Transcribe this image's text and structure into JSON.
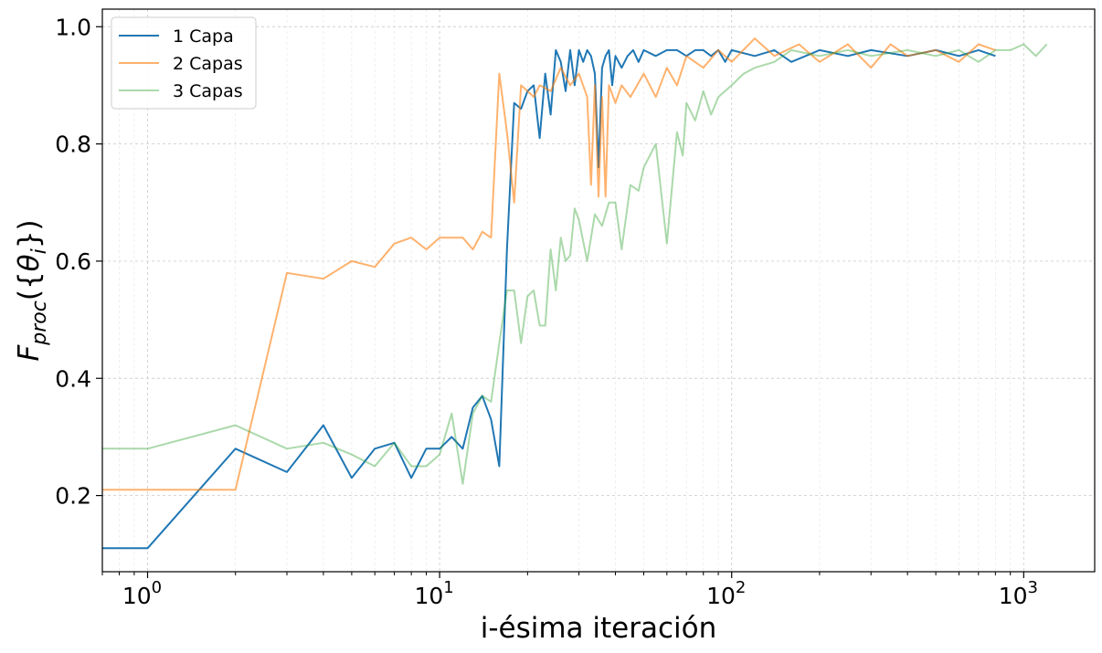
{
  "chart_data": {
    "type": "line",
    "xscale": "log",
    "xlabel": "i-ésima iteración",
    "ylabel": "F_proc({θ_i})",
    "xlim": [
      0.7,
      1750
    ],
    "ylim": [
      0.07,
      1.03
    ],
    "xticks": [
      {
        "value": 1,
        "base": "10",
        "exp": "0"
      },
      {
        "value": 10,
        "base": "10",
        "exp": "1"
      },
      {
        "value": 100,
        "base": "10",
        "exp": "2"
      },
      {
        "value": 1000,
        "base": "10",
        "exp": "3"
      }
    ],
    "yticks": [
      {
        "value": 0.2,
        "label": "0.2"
      },
      {
        "value": 0.4,
        "label": "0.4"
      },
      {
        "value": 0.6,
        "label": "0.6"
      },
      {
        "value": 0.8,
        "label": "0.8"
      },
      {
        "value": 1.0,
        "label": "1.0"
      }
    ],
    "grid": true,
    "legend_position": "top-left",
    "series": [
      {
        "name": "1 Capa",
        "color": "#1f77b4",
        "opacity": 1.0,
        "x": [
          0,
          1,
          2,
          3,
          4,
          5,
          6,
          7,
          8,
          9,
          10,
          11,
          12,
          13,
          14,
          15,
          16,
          17,
          18,
          19,
          20,
          21,
          22,
          23,
          24,
          25,
          26,
          27,
          28,
          29,
          30,
          31,
          32,
          33,
          34,
          35,
          36,
          37,
          38,
          39,
          40,
          42,
          44,
          46,
          48,
          50,
          55,
          60,
          65,
          70,
          75,
          80,
          85,
          90,
          95,
          100,
          120,
          140,
          160,
          200,
          250,
          300,
          400,
          500,
          600,
          700,
          800
        ],
        "y": [
          0.11,
          0.11,
          0.28,
          0.24,
          0.32,
          0.23,
          0.28,
          0.29,
          0.23,
          0.28,
          0.28,
          0.3,
          0.28,
          0.35,
          0.37,
          0.33,
          0.25,
          0.62,
          0.87,
          0.86,
          0.89,
          0.9,
          0.81,
          0.92,
          0.85,
          0.96,
          0.94,
          0.89,
          0.96,
          0.9,
          0.96,
          0.94,
          0.96,
          0.95,
          0.92,
          0.76,
          0.93,
          0.95,
          0.96,
          0.9,
          0.95,
          0.93,
          0.95,
          0.96,
          0.94,
          0.96,
          0.95,
          0.96,
          0.96,
          0.95,
          0.96,
          0.96,
          0.95,
          0.96,
          0.94,
          0.96,
          0.95,
          0.96,
          0.94,
          0.96,
          0.95,
          0.96,
          0.95,
          0.96,
          0.95,
          0.96,
          0.95
        ]
      },
      {
        "name": "2 Capas",
        "color": "#ff7f0e",
        "opacity": 0.6,
        "x": [
          0,
          1,
          2,
          3,
          4,
          5,
          6,
          7,
          8,
          9,
          10,
          11,
          12,
          13,
          14,
          15,
          16,
          17,
          18,
          19,
          20,
          21,
          22,
          24,
          26,
          28,
          30,
          32,
          33,
          34,
          35,
          36,
          37,
          38,
          40,
          42,
          45,
          50,
          55,
          60,
          65,
          70,
          80,
          90,
          100,
          120,
          140,
          170,
          200,
          250,
          300,
          350,
          400,
          500,
          600,
          700,
          800
        ],
        "y": [
          0.21,
          0.21,
          0.21,
          0.58,
          0.57,
          0.6,
          0.59,
          0.63,
          0.64,
          0.62,
          0.64,
          0.64,
          0.64,
          0.62,
          0.65,
          0.64,
          0.92,
          0.82,
          0.7,
          0.9,
          0.89,
          0.88,
          0.9,
          0.89,
          0.93,
          0.9,
          0.92,
          0.88,
          0.73,
          0.9,
          0.71,
          0.88,
          0.71,
          0.9,
          0.87,
          0.9,
          0.88,
          0.92,
          0.88,
          0.93,
          0.9,
          0.95,
          0.93,
          0.96,
          0.94,
          0.98,
          0.95,
          0.97,
          0.94,
          0.97,
          0.93,
          0.97,
          0.95,
          0.96,
          0.94,
          0.97,
          0.96
        ]
      },
      {
        "name": "3 Capas",
        "color": "#2ca02c",
        "opacity": 0.4,
        "x": [
          0,
          1,
          2,
          3,
          4,
          5,
          6,
          7,
          8,
          9,
          10,
          11,
          12,
          13,
          14,
          15,
          16,
          17,
          18,
          19,
          20,
          21,
          22,
          23,
          24,
          25,
          26,
          27,
          28,
          29,
          30,
          32,
          34,
          36,
          38,
          40,
          42,
          45,
          48,
          50,
          55,
          60,
          65,
          68,
          70,
          75,
          80,
          85,
          90,
          100,
          110,
          120,
          140,
          160,
          200,
          250,
          300,
          400,
          500,
          600,
          700,
          800,
          900,
          1000,
          1100,
          1200
        ],
        "y": [
          0.28,
          0.28,
          0.32,
          0.28,
          0.29,
          0.27,
          0.25,
          0.29,
          0.25,
          0.25,
          0.27,
          0.34,
          0.22,
          0.34,
          0.37,
          0.36,
          0.46,
          0.55,
          0.55,
          0.46,
          0.54,
          0.55,
          0.49,
          0.49,
          0.62,
          0.55,
          0.64,
          0.6,
          0.61,
          0.69,
          0.67,
          0.6,
          0.68,
          0.66,
          0.7,
          0.7,
          0.62,
          0.73,
          0.72,
          0.76,
          0.8,
          0.63,
          0.82,
          0.78,
          0.87,
          0.84,
          0.89,
          0.85,
          0.88,
          0.9,
          0.92,
          0.93,
          0.94,
          0.96,
          0.95,
          0.96,
          0.95,
          0.96,
          0.95,
          0.96,
          0.94,
          0.96,
          0.96,
          0.97,
          0.95,
          0.97
        ]
      }
    ]
  }
}
